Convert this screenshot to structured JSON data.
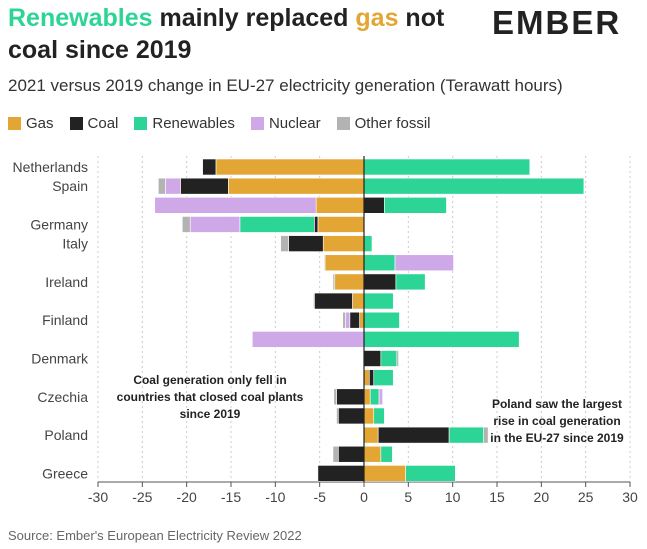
{
  "header": {
    "title_part1": "Renewables",
    "title_part2": " mainly replaced ",
    "title_part3": "gas",
    "title_part4": " not coal since 2019",
    "logo": "EMBER",
    "subtitle": "2021 versus 2019 change in EU-27 electricity generation (Terawatt hours)"
  },
  "colors": {
    "Gas": "#e3a634",
    "Coal": "#222222",
    "Renewables": "#2cd596",
    "Nuclear": "#cfa8e8",
    "Other fossil": "#b3b3b3"
  },
  "chart_data": {
    "type": "bar",
    "orientation": "horizontal-stacked",
    "categories": [
      "Netherlands",
      "Spain",
      "",
      "Germany",
      "Italy",
      "",
      "Ireland",
      "",
      "Finland",
      "",
      "Denmark",
      "",
      "Czechia",
      "",
      "Poland",
      "",
      "Greece"
    ],
    "series": [
      {
        "name": "Gas",
        "values": [
          -16.7,
          -15.3,
          -5.4,
          -5.2,
          -4.6,
          -4.4,
          -3.3,
          -1.3,
          -0.5,
          0,
          0,
          0.6,
          0.7,
          1.1,
          1.6,
          1.9,
          4.7
        ]
      },
      {
        "name": "Coal",
        "values": [
          -1.5,
          -5.4,
          2.3,
          -0.4,
          -3.9,
          0,
          3.6,
          -4.3,
          -1.1,
          0,
          1.9,
          0.5,
          -3.1,
          -2.9,
          8.0,
          -2.9,
          -5.2
        ]
      },
      {
        "name": "Renewables",
        "values": [
          18.7,
          24.8,
          7.0,
          -8.4,
          0.9,
          3.5,
          3.3,
          3.3,
          4.0,
          17.5,
          1.8,
          2.2,
          1.0,
          1.2,
          3.9,
          1.3,
          5.6
        ]
      },
      {
        "name": "Nuclear",
        "values": [
          0,
          -1.7,
          -18.2,
          -5.6,
          0,
          6.6,
          0,
          0,
          -0.5,
          -12.6,
          0,
          0,
          0.4,
          0,
          0,
          0,
          0
        ]
      },
      {
        "name": "Other fossil",
        "values": [
          0,
          -0.8,
          0,
          -0.9,
          -0.9,
          -0.1,
          -0.2,
          -0.1,
          -0.3,
          0,
          0.2,
          0,
          -0.3,
          -0.2,
          0.5,
          -0.6,
          0
        ]
      }
    ],
    "xlim": [
      -30,
      30
    ],
    "xticks": [
      -30,
      -25,
      -20,
      -15,
      -10,
      -5,
      0,
      5,
      10,
      15,
      20,
      25,
      30
    ],
    "grid": "vertical dashed",
    "legend_position": "top-left",
    "annotations": [
      {
        "text": [
          "Coal generation only fell in",
          "countries that closed coal plants",
          "since 2019"
        ]
      },
      {
        "text": [
          "Poland saw the largest",
          "rise in coal generation",
          "in the EU-27 since 2019"
        ]
      }
    ]
  },
  "source": "Source: Ember's European Electricity Review 2022"
}
